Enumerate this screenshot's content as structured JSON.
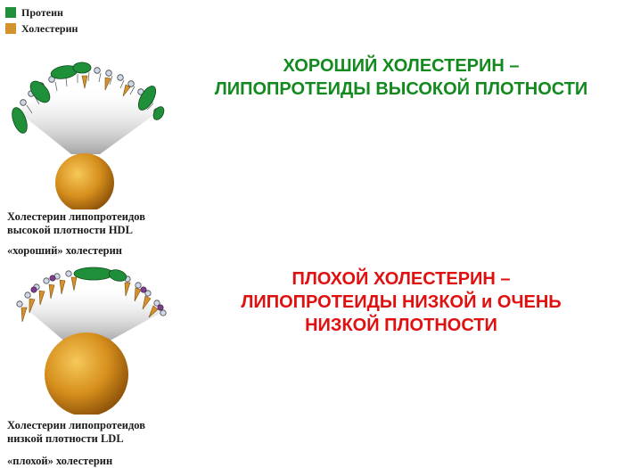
{
  "legend": {
    "items": [
      {
        "label": "Протеин",
        "color": "#1f8f3a",
        "icon": "green-square"
      },
      {
        "label": "Холестерин",
        "color": "#d4932a",
        "icon": "orange-square"
      }
    ]
  },
  "hdl": {
    "caption_line1": "Холестерин липопротеидов",
    "caption_line2": "высокой плотности HDL",
    "caption_line3": "«хороший» холестерин",
    "headline_line1": "ХОРОШИЙ ХОЛЕСТЕРИН –",
    "headline_line2": "ЛИПОПРОТЕИДЫ ВЫСОКОЙ ПЛОТНОСТИ",
    "headline_color": "#138a1f"
  },
  "ldl": {
    "caption_line1": "Холестерин липопротеидов",
    "caption_line2": "низкой плотности LDL",
    "caption_line3": "«плохой» холестерин",
    "headline_line1": "ПЛОХОЙ ХОЛЕСТЕРИН –",
    "headline_line2": "ЛИПОПРОТЕИДЫ НИЗКОЙ и ОЧЕНЬ",
    "headline_line3": "НИЗКОЙ ПЛОТНОСТИ",
    "headline_color": "#e01010"
  }
}
